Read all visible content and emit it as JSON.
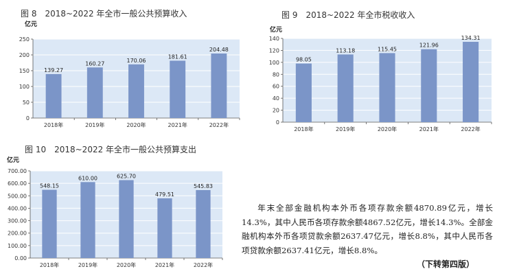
{
  "chart_data": [
    {
      "type": "bar",
      "title": "图 8　2018~2022 年全市一般公共预算收入",
      "ylabel": "亿元",
      "categories": [
        "2018年",
        "2019年",
        "2020年",
        "2021年",
        "2022年"
      ],
      "values": [
        139.27,
        160.27,
        170.06,
        181.61,
        204.48
      ],
      "value_labels": [
        "139.27",
        "160.27",
        "170.06",
        "181.61",
        "204.48"
      ],
      "yticks": [
        "0",
        "50",
        "100",
        "150",
        "200",
        "250"
      ],
      "ylim": [
        0,
        250
      ],
      "grid": true,
      "plot_bg": "#dce8f6",
      "bar_color": "#7b95c8"
    },
    {
      "type": "bar",
      "title": "图 9　2018~2022 年全市税收收入",
      "ylabel": "亿元",
      "categories": [
        "2018年",
        "2019年",
        "2020年",
        "2021年",
        "2022年"
      ],
      "values": [
        98.05,
        113.18,
        115.45,
        121.96,
        134.31
      ],
      "value_labels": [
        "98.05",
        "113.18",
        "115.45",
        "121.96",
        "134.31"
      ],
      "yticks": [
        "0",
        "20",
        "40",
        "60",
        "80",
        "100",
        "120",
        "140"
      ],
      "ylim": [
        0,
        140
      ],
      "grid": true,
      "plot_bg": "#dce8f6",
      "bar_color": "#7b95c8"
    },
    {
      "type": "bar",
      "title": "图 10　2018~2022 年全市一般公共预算支出",
      "ylabel": "亿元",
      "categories": [
        "2018年",
        "2019年",
        "2020年",
        "2021年",
        "2022年"
      ],
      "values": [
        548.15,
        610.0,
        625.7,
        479.51,
        545.83
      ],
      "value_labels": [
        "548.15",
        "610.00",
        "625.70",
        "479.51",
        "545.83"
      ],
      "yticks": [
        "0.00",
        "100.00",
        "200.00",
        "300.00",
        "400.00",
        "500.00",
        "600.00",
        "700.00"
      ],
      "ylim": [
        0,
        700
      ],
      "grid": true,
      "plot_bg": "#dce8f6",
      "bar_color": "#7b95c8"
    }
  ],
  "article": {
    "paragraph": "年末全部金融机构本外币各项存款余额4870.89亿元，增长14.3%，其中人民币各项存款余额4867.52亿元，增长14.3%。全部金融机构本外币各项贷款余额2637.47亿元，增长8.8%，其中人民币各项贷款余额2637.41亿元，增长8.8%。",
    "continued_note": "（下转第四版）"
  }
}
